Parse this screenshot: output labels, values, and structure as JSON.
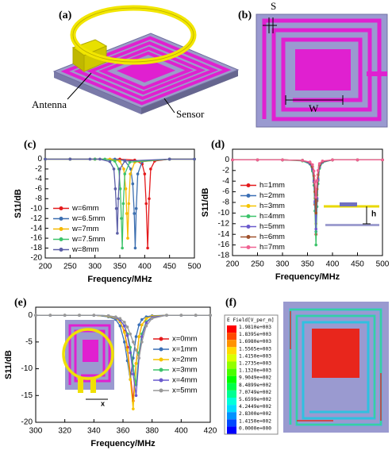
{
  "panel_a": {
    "label": "(a)",
    "antenna": "Antenna",
    "sensor": "Sensor"
  },
  "panel_b": {
    "label": "(b)",
    "s": "S",
    "w": "W"
  },
  "chart_data": [
    {
      "type": "line",
      "panel_label": "(c)",
      "xlabel": "Frequency/MHz",
      "ylabel": "S11/dB",
      "xlim": [
        200,
        500
      ],
      "xticks": [
        200,
        250,
        300,
        350,
        400,
        450,
        500
      ],
      "ylim": [
        -20,
        2
      ],
      "yticks": [
        0,
        -2,
        -4,
        -6,
        -8,
        -10,
        -12,
        -14,
        -16,
        -18,
        -20
      ],
      "legend": "lower left",
      "series": [
        {
          "name": "w=6mm",
          "color": "#e41a1c",
          "x": [
            200,
            250,
            300,
            350,
            380,
            395,
            400,
            403,
            406,
            409,
            412,
            420,
            450,
            500
          ],
          "values": [
            0,
            0,
            0,
            0,
            -0.2,
            -1,
            -3,
            -9,
            -18,
            -8,
            -2,
            -0.4,
            0,
            0
          ]
        },
        {
          "name": "w=6.5mm",
          "color": "#3c6fb0",
          "x": [
            200,
            250,
            300,
            340,
            360,
            372,
            376,
            379,
            381,
            383,
            386,
            395,
            450,
            500
          ],
          "values": [
            0,
            0,
            0,
            0,
            -0.3,
            -2,
            -5,
            -11,
            -18,
            -10,
            -3,
            -0.5,
            0,
            0
          ]
        },
        {
          "name": "w=7mm",
          "color": "#f5b800",
          "x": [
            200,
            250,
            300,
            330,
            350,
            358,
            362,
            364,
            366,
            368,
            371,
            380,
            450,
            500
          ],
          "values": [
            0,
            0,
            0,
            0,
            -0.4,
            -2,
            -6,
            -11,
            -16,
            -9,
            -3,
            -0.6,
            0,
            0
          ]
        },
        {
          "name": "w=7.5mm",
          "color": "#3cc36a",
          "x": [
            200,
            250,
            300,
            320,
            340,
            348,
            351,
            353,
            355,
            357,
            360,
            370,
            450,
            500
          ],
          "values": [
            0,
            0,
            0,
            0,
            -0.4,
            -2,
            -6,
            -12,
            -18,
            -9,
            -3,
            -0.6,
            0,
            0
          ]
        },
        {
          "name": "w=8mm",
          "color": "#5b5ea6",
          "x": [
            200,
            250,
            290,
            310,
            330,
            338,
            341,
            343,
            345,
            347,
            350,
            360,
            450,
            500
          ],
          "values": [
            0,
            0,
            0,
            0,
            -0.5,
            -2,
            -6,
            -10,
            -15,
            -8,
            -2,
            -0.4,
            0,
            0
          ]
        }
      ]
    },
    {
      "type": "line",
      "panel_label": "(d)",
      "xlabel": "Frequency/MHz",
      "ylabel": "S11/dB",
      "xlim": [
        200,
        500
      ],
      "xticks": [
        200,
        250,
        300,
        350,
        400,
        450,
        500
      ],
      "ylim": [
        -18,
        2
      ],
      "yticks": [
        0,
        -2,
        -4,
        -6,
        -8,
        -10,
        -12,
        -14,
        -16,
        -18
      ],
      "legend": "lower left",
      "annotations": [
        "h"
      ],
      "x": [
        200,
        250,
        300,
        340,
        355,
        360,
        363,
        365,
        367,
        369,
        371,
        374,
        380,
        400,
        450,
        500
      ],
      "series": [
        {
          "name": "h=1mm",
          "color": "#e41a1c",
          "values": [
            0,
            0,
            0,
            -0.1,
            -0.7,
            -1.8,
            -4.2,
            -8.4,
            -14,
            -7.7,
            -3.9,
            -1.4,
            -0.4,
            0,
            0,
            0
          ]
        },
        {
          "name": "h=2mm",
          "color": "#3a6fb5",
          "values": [
            0,
            0,
            0,
            -0.1,
            -0.7,
            -1.8,
            -4.1,
            -8.1,
            -13.5,
            -7.4,
            -3.8,
            -1.4,
            -0.4,
            0,
            0,
            0
          ]
        },
        {
          "name": "h=3mm",
          "color": "#f5c400",
          "values": [
            0,
            0,
            0,
            -0.1,
            -0.6,
            -1.6,
            -3.6,
            -7.2,
            -12,
            -6.6,
            -3.4,
            -1.2,
            -0.4,
            0,
            0,
            0
          ]
        },
        {
          "name": "h=4mm",
          "color": "#3cc36a",
          "values": [
            0,
            0,
            0,
            -0.2,
            -0.8,
            -2.1,
            -4.8,
            -9.6,
            -16,
            -8.8,
            -4.5,
            -1.6,
            -0.5,
            0,
            0,
            0
          ]
        },
        {
          "name": "h=5mm",
          "color": "#6a5acd",
          "values": [
            0,
            0,
            0,
            -0.1,
            -0.7,
            -1.7,
            -3.9,
            -7.8,
            -13,
            -7.2,
            -3.6,
            -1.3,
            -0.4,
            0,
            0,
            0
          ]
        },
        {
          "name": "h=6mm",
          "color": "#a0522d",
          "values": [
            0,
            0,
            0,
            -0.1,
            -0.5,
            -1.3,
            -3,
            -6,
            -10,
            -5.5,
            -2.8,
            -1,
            -0.3,
            0,
            0,
            0
          ]
        },
        {
          "name": "h=7mm",
          "color": "#f06292",
          "values": [
            0,
            0,
            0,
            -0.1,
            -0.4,
            -0.9,
            -2.1,
            -4.2,
            -7,
            -3.9,
            -2,
            -0.7,
            -0.2,
            0,
            0,
            0
          ]
        }
      ]
    },
    {
      "type": "line",
      "panel_label": "(e)",
      "xlabel": "Frequency/MHz",
      "ylabel": "S11/dB",
      "xlim": [
        300,
        420
      ],
      "xticks": [
        300,
        320,
        340,
        360,
        380,
        400,
        420
      ],
      "ylim": [
        -20,
        1.5
      ],
      "yticks": [
        0,
        -5,
        -10,
        -15,
        -20
      ],
      "legend": "center right",
      "annotations": [
        "x"
      ],
      "x": [
        300,
        310,
        320,
        330,
        340,
        350,
        355,
        358,
        361,
        363,
        365,
        367,
        369,
        371,
        373,
        376,
        380,
        390,
        400,
        410,
        420
      ],
      "series": [
        {
          "name": "x=0mm",
          "color": "#e41a1c",
          "values": [
            0,
            0,
            0,
            0,
            0,
            -0.2,
            -0.5,
            -1.2,
            -3,
            -6,
            -11,
            -16,
            -9,
            -4,
            -1.8,
            -0.6,
            -0.2,
            0,
            0,
            0,
            0
          ]
        },
        {
          "name": "x=1mm",
          "color": "#3a6fb5",
          "values": [
            0,
            0,
            0,
            0,
            0,
            -0.3,
            -0.8,
            -2,
            -5,
            -8.5,
            -12,
            -8,
            -4,
            -1.8,
            -0.8,
            -0.3,
            -0.1,
            0,
            0,
            0,
            0
          ]
        },
        {
          "name": "x=2mm",
          "color": "#f5c400",
          "values": [
            0,
            0,
            0,
            0,
            0,
            -0.2,
            -0.5,
            -1.2,
            -3.2,
            -6.5,
            -12,
            -17.5,
            -9,
            -4,
            -1.8,
            -0.6,
            -0.2,
            0,
            0,
            0,
            0
          ]
        },
        {
          "name": "x=3mm",
          "color": "#3cc36a",
          "values": [
            0,
            0,
            0,
            0,
            0,
            -0.1,
            -0.4,
            -0.9,
            -2,
            -3.5,
            -6,
            -9.5,
            -13,
            -7,
            -3.5,
            -1.2,
            -0.4,
            0,
            0,
            0,
            0
          ]
        },
        {
          "name": "x=4mm",
          "color": "#6a5acd",
          "values": [
            0,
            0,
            0,
            0,
            0,
            -0.1,
            -0.4,
            -0.9,
            -2,
            -3.8,
            -7,
            -11,
            -15,
            -8,
            -4,
            -1.4,
            -0.4,
            0,
            0,
            0,
            0
          ]
        },
        {
          "name": "x=5mm",
          "color": "#999999",
          "values": [
            0,
            0,
            0,
            0,
            0,
            -0.1,
            -0.3,
            -0.6,
            -1.3,
            -2.2,
            -3.5,
            -5,
            -6.5,
            -8,
            -5,
            -2,
            -0.6,
            0,
            0,
            0,
            0
          ]
        }
      ]
    }
  ],
  "panel_f": {
    "label": "(f)",
    "colorbar_title": "E Field[V_per_m]",
    "colorbar_labels": [
      "1.9810e+003",
      "1.8395e+003",
      "1.6980e+003",
      "1.5565e+003",
      "1.4150e+003",
      "1.2735e+003",
      "1.1320e+003",
      "9.9049e+002",
      "8.4899e+002",
      "7.0749e+002",
      "5.6599e+002",
      "4.2449e+002",
      "2.8300e+002",
      "1.4150e+002",
      "0.0000e+000"
    ]
  }
}
